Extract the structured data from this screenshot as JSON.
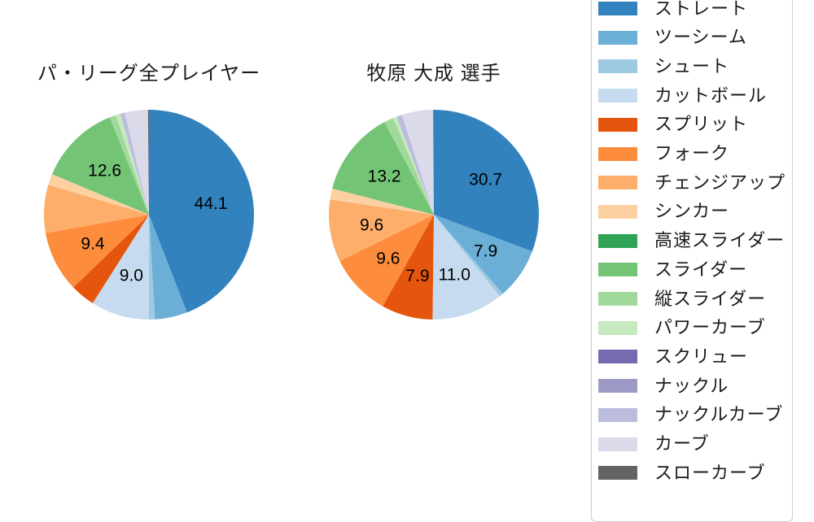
{
  "figure": {
    "background": "#ffffff",
    "text_color": "#1a1a1a"
  },
  "chart_data": [
    {
      "type": "pie",
      "title": "パ・リーグ全プレイヤー",
      "start_angle": "12-oclock",
      "direction": "clockwise",
      "label_distance": 0.6,
      "categories": [
        "ストレート",
        "ツーシーム",
        "シュート",
        "カットボール",
        "スプリット",
        "フォーク",
        "チェンジアップ",
        "シンカー",
        "高速スライダー",
        "スライダー",
        "縦スライダー",
        "パワーカーブ",
        "スクリュー",
        "ナックル",
        "ナックルカーブ",
        "カーブ",
        "スローカーブ"
      ],
      "values": [
        44.1,
        5.0,
        0.9,
        9.0,
        3.8,
        9.4,
        7.4,
        1.7,
        0.0,
        12.6,
        1.0,
        0.7,
        0.0,
        0.0,
        0.7,
        3.55,
        0.15
      ],
      "colors": [
        "#3182bd",
        "#6baed6",
        "#9ecae1",
        "#c6dbef",
        "#e6550d",
        "#fd8d3c",
        "#fdae6b",
        "#fdd0a2",
        "#31a354",
        "#74c476",
        "#a1d99b",
        "#c7e9c0",
        "#756bb1",
        "#9e9ac8",
        "#bcbddc",
        "#dadaeb",
        "#636363"
      ],
      "value_labels": [
        "44.1",
        null,
        null,
        "9.0",
        null,
        "9.4",
        null,
        null,
        null,
        "12.6",
        null,
        null,
        null,
        null,
        null,
        null,
        null
      ]
    },
    {
      "type": "pie",
      "title": "牧原 大成  選手",
      "start_angle": "12-oclock",
      "direction": "clockwise",
      "label_distance": 0.6,
      "categories": [
        "ストレート",
        "ツーシーム",
        "シュート",
        "カットボール",
        "スプリット",
        "フォーク",
        "チェンジアップ",
        "シンカー",
        "高速スライダー",
        "スライダー",
        "縦スライダー",
        "パワーカーブ",
        "スクリュー",
        "ナックル",
        "ナックルカーブ",
        "カーブ",
        "スローカーブ"
      ],
      "values": [
        30.7,
        7.9,
        0.6,
        11.0,
        7.9,
        9.6,
        9.6,
        1.7,
        0.0,
        13.2,
        1.5,
        0.5,
        0.0,
        0.0,
        0.9,
        4.8,
        0.1
      ],
      "colors": [
        "#3182bd",
        "#6baed6",
        "#9ecae1",
        "#c6dbef",
        "#e6550d",
        "#fd8d3c",
        "#fdae6b",
        "#fdd0a2",
        "#31a354",
        "#74c476",
        "#a1d99b",
        "#c7e9c0",
        "#756bb1",
        "#9e9ac8",
        "#bcbddc",
        "#dadaeb",
        "#636363"
      ],
      "value_labels": [
        "30.7",
        "7.9",
        null,
        "11.0",
        "7.9",
        "9.6",
        "9.6",
        null,
        null,
        "13.2",
        null,
        null,
        null,
        null,
        null,
        null,
        null
      ]
    }
  ],
  "legend": {
    "position": "right",
    "border_color": "#cccccc",
    "items": [
      {
        "label": "ストレート",
        "color": "#3182bd"
      },
      {
        "label": "ツーシーム",
        "color": "#6baed6"
      },
      {
        "label": "シュート",
        "color": "#9ecae1"
      },
      {
        "label": "カットボール",
        "color": "#c6dbef"
      },
      {
        "label": "スプリット",
        "color": "#e6550d"
      },
      {
        "label": "フォーク",
        "color": "#fd8d3c"
      },
      {
        "label": "チェンジアップ",
        "color": "#fdae6b"
      },
      {
        "label": "シンカー",
        "color": "#fdd0a2"
      },
      {
        "label": "高速スライダー",
        "color": "#31a354"
      },
      {
        "label": "スライダー",
        "color": "#74c476"
      },
      {
        "label": "縦スライダー",
        "color": "#a1d99b"
      },
      {
        "label": "パワーカーブ",
        "color": "#c7e9c0"
      },
      {
        "label": "スクリュー",
        "color": "#756bb1"
      },
      {
        "label": "ナックル",
        "color": "#9e9ac8"
      },
      {
        "label": "ナックルカーブ",
        "color": "#bcbddc"
      },
      {
        "label": "カーブ",
        "color": "#dadaeb"
      },
      {
        "label": "スローカーブ",
        "color": "#636363"
      }
    ]
  }
}
